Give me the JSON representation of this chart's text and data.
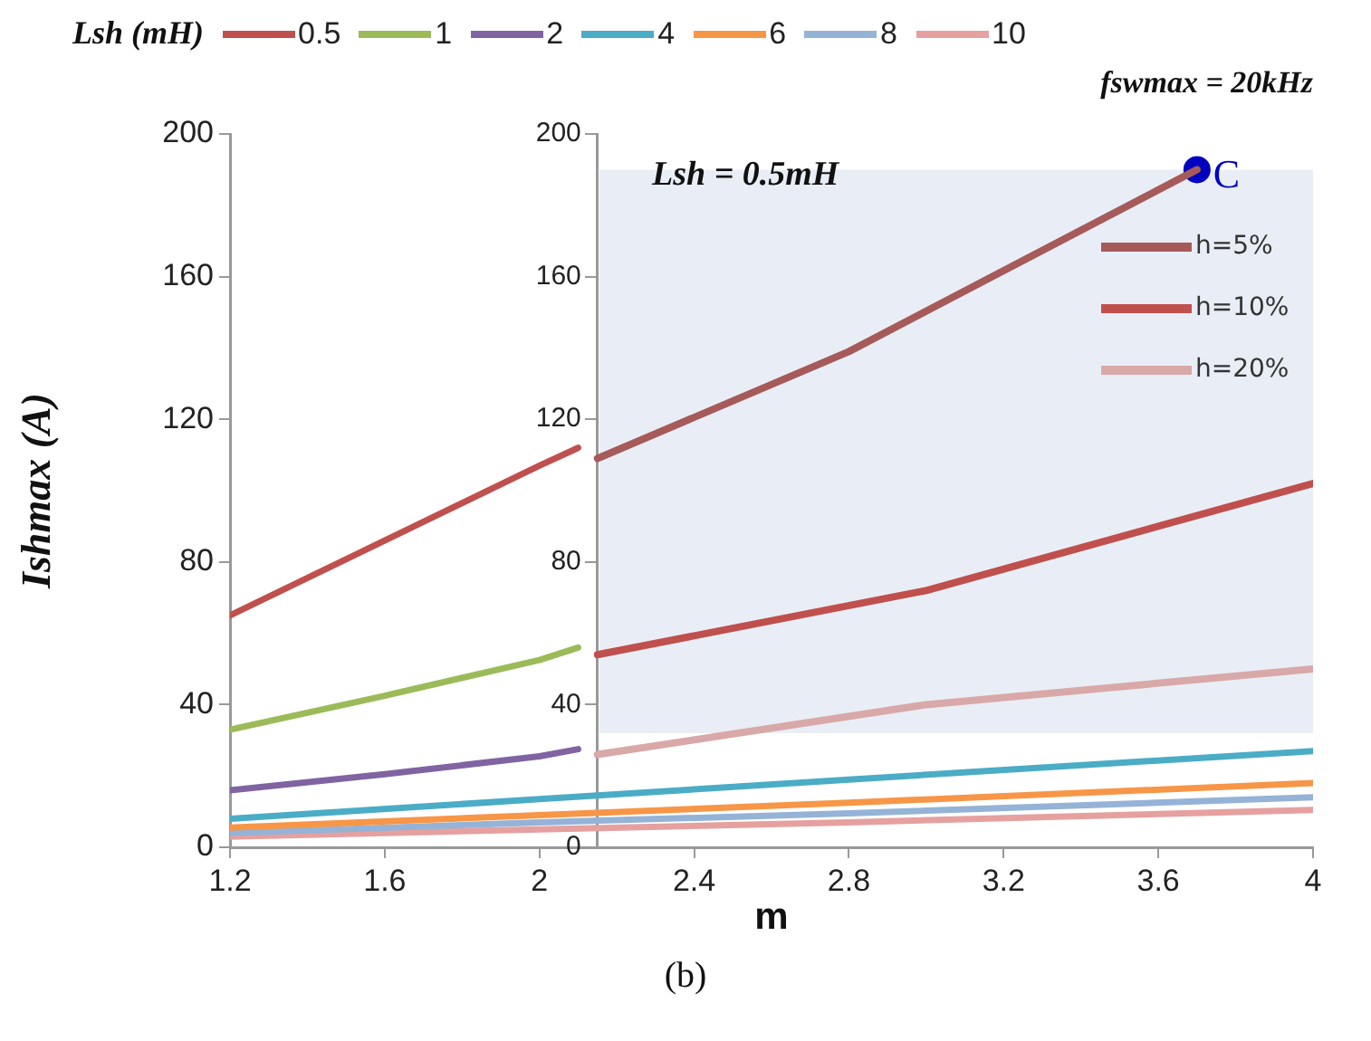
{
  "chart_data": {
    "type": "line",
    "xlabel": "m",
    "ylabel": "Ishmax (A)",
    "legend_title": "Lsh (mH)",
    "legend": "top",
    "grid": false,
    "marker": "none",
    "xlim": [
      1.2,
      4
    ],
    "xticks": [
      1.2,
      1.6,
      2,
      2.4,
      2.8,
      3.2,
      3.6,
      4
    ],
    "ylim": [
      0,
      200
    ],
    "yticks": [
      0,
      40,
      80,
      120,
      160,
      200
    ],
    "y2lim": [
      0,
      200
    ],
    "y2ticks": [
      0,
      40,
      80,
      120,
      160,
      200
    ],
    "bands": [
      {
        "axis": "y2",
        "from": 32,
        "to": 190,
        "color": "#e9eef6"
      }
    ],
    "annotations": [
      "Lsh = 0.5mH",
      "fswmax = 20kHz",
      "(b)"
    ],
    "series": [
      {
        "name": "0.5",
        "color": "#c0504d",
        "x": [
          1.2,
          1.6,
          2.0,
          2.1
        ],
        "values": [
          65,
          86,
          107,
          112
        ]
      },
      {
        "name": "1",
        "color": "#9bbb59",
        "x": [
          1.2,
          1.6,
          2.0,
          2.1
        ],
        "values": [
          33,
          42.5,
          52.5,
          56
        ]
      },
      {
        "name": "2",
        "color": "#8064a2",
        "x": [
          1.2,
          1.6,
          2.0,
          2.1
        ],
        "values": [
          16,
          20.5,
          25.5,
          27.5
        ]
      },
      {
        "name": "4",
        "color": "#4bacc6",
        "x": [
          1.2,
          2.0,
          2.8,
          4
        ],
        "values": [
          8,
          13.5,
          19,
          27
        ]
      },
      {
        "name": "6",
        "color": "#f79646",
        "x": [
          1.2,
          2.0,
          2.8,
          4
        ],
        "values": [
          5.5,
          9,
          12.5,
          18
        ]
      },
      {
        "name": "8",
        "color": "#95b3d7",
        "x": [
          1.2,
          2.0,
          2.8,
          4
        ],
        "values": [
          4,
          7,
          9.5,
          14
        ]
      },
      {
        "name": "10",
        "color": "#e6a0a0",
        "x": [
          1.2,
          2.0,
          2.8,
          4
        ],
        "values": [
          3,
          5,
          7,
          10.5
        ]
      },
      {
        "name": "h=5%",
        "axis": "y2",
        "color": "#a65a59",
        "x": [
          2.15,
          2.8,
          3.7
        ],
        "values": [
          109,
          139,
          190
        ]
      },
      {
        "name": "h=10%",
        "axis": "y2",
        "color": "#c0504d",
        "x": [
          2.15,
          3.0,
          4
        ],
        "values": [
          54,
          72,
          102
        ]
      },
      {
        "name": "h=20%",
        "axis": "y2",
        "color": "#d9a8a8",
        "x": [
          2.15,
          3.0,
          4
        ],
        "values": [
          26,
          40,
          50
        ]
      },
      {
        "type": "scatter",
        "axis": "y2",
        "name": "C",
        "color": "#0000c0",
        "marker": "circle",
        "x": [
          3.7
        ],
        "values": [
          190
        ]
      }
    ]
  }
}
